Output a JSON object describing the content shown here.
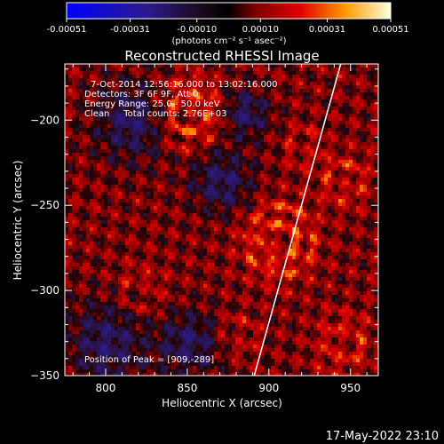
{
  "chart_data": {
    "type": "heatmap",
    "title": "Reconstructed RHESSI Image",
    "xlabel": "Heliocentric X (arcsec)",
    "ylabel": "Heliocentric Y (arcsec)",
    "xlim": [
      775,
      967
    ],
    "ylim": [
      -350,
      -167
    ],
    "x_ticks": [
      800,
      850,
      900,
      950
    ],
    "y_ticks": [
      -200,
      -250,
      -300,
      -350
    ],
    "colorbar": {
      "ticks": [
        "-0.00051",
        "-0.00031",
        "-0.00010",
        "0.00010",
        "0.00031",
        "0.00051"
      ],
      "range": [
        -0.00051,
        0.00051
      ],
      "label": "(photons cm⁻² s⁻¹ asec⁻²)"
    },
    "annotations": [
      "7-Oct-2014 12:56:16.000 to 13:02:16.000",
      "Detectors: 3F 6F 9F, Att 0",
      "Energy Range: 25.0 - 50.0 keV",
      "Clean     Total counts: 2.76E+03"
    ],
    "peak_label": "Position of Peak = [909,-289]",
    "peak": [
      909,
      -289
    ],
    "limb": [
      [
        891,
        -350
      ],
      [
        944,
        -167
      ]
    ],
    "grid": false
  },
  "footer": {
    "timestamp": "17-May-2022 23:10"
  }
}
